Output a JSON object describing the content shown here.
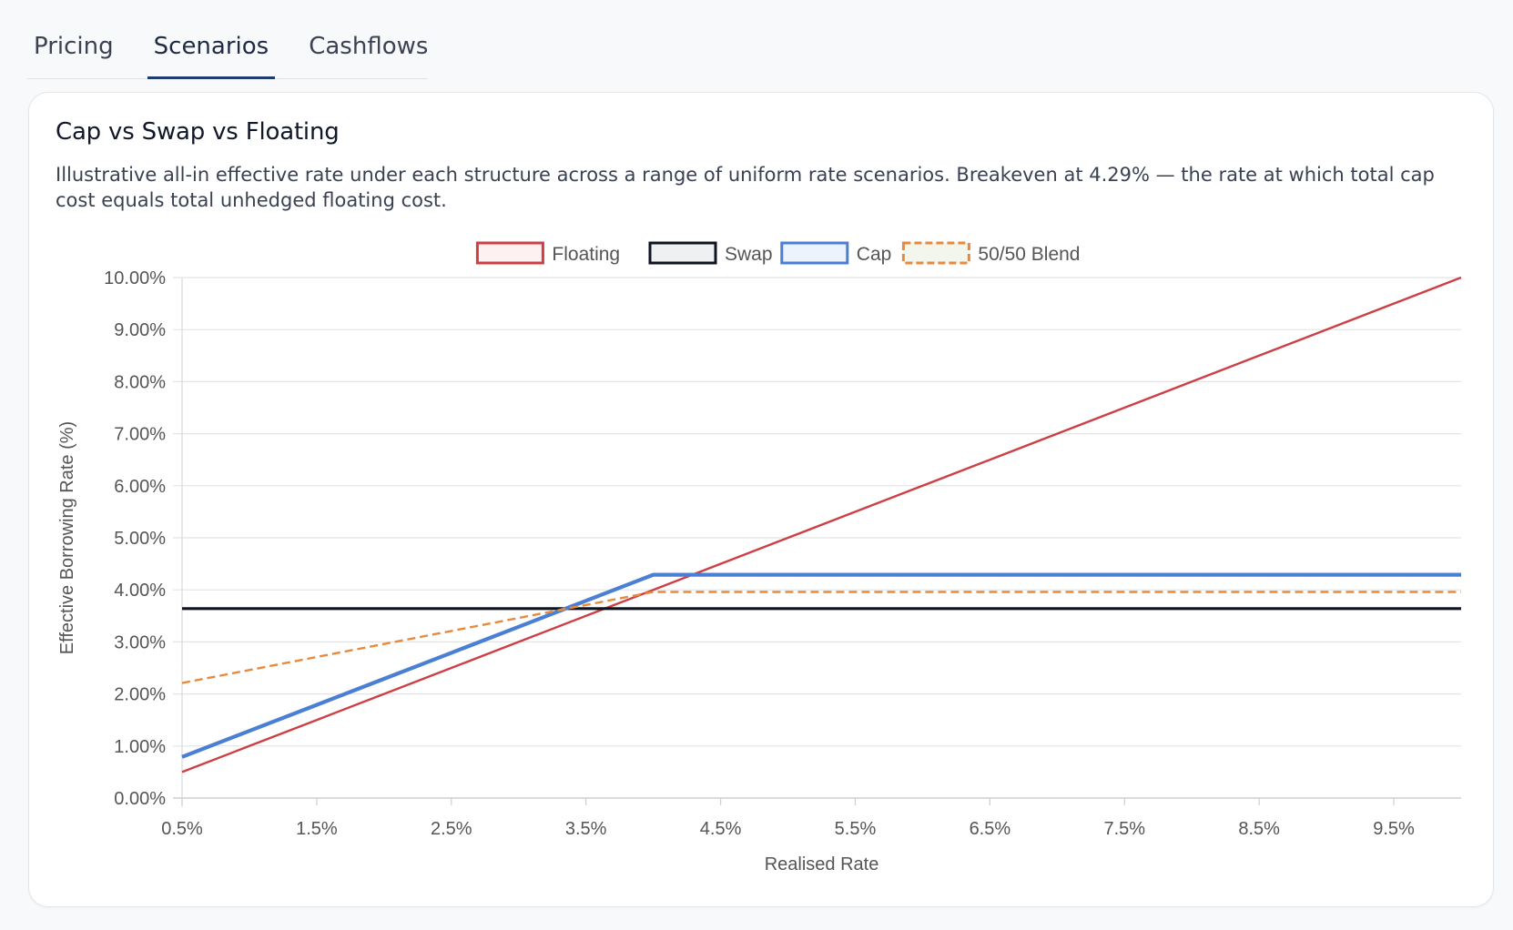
{
  "tabs": [
    {
      "label": "Pricing",
      "active": false
    },
    {
      "label": "Scenarios",
      "active": true
    },
    {
      "label": "Cashflows",
      "active": false
    }
  ],
  "card": {
    "title": "Cap vs Swap vs Floating",
    "description": "Illustrative all-in effective rate under each structure across a range of uniform rate scenarios. Breakeven at 4.29% — the rate at which total cap cost equals total unhedged floating cost."
  },
  "chart_data": {
    "type": "line",
    "title": "",
    "xlabel": "Realised Rate",
    "ylabel": "Effective Borrowing Rate (%)",
    "x": [
      0.5,
      1.0,
      1.5,
      2.0,
      2.5,
      3.0,
      3.5,
      4.0,
      4.5,
      5.0,
      5.5,
      6.0,
      6.5,
      7.0,
      7.5,
      8.0,
      8.5,
      9.0,
      9.5,
      10.0
    ],
    "x_tick_labels": [
      "0.5%",
      "1.5%",
      "2.5%",
      "3.5%",
      "4.5%",
      "5.5%",
      "6.5%",
      "7.5%",
      "8.5%",
      "9.5%"
    ],
    "xlim": [
      0.5,
      10.0
    ],
    "ylim": [
      0,
      10
    ],
    "y_ticks": [
      0,
      1,
      2,
      3,
      4,
      5,
      6,
      7,
      8,
      9,
      10
    ],
    "y_tick_labels": [
      "0.00%",
      "1.00%",
      "2.00%",
      "3.00%",
      "4.00%",
      "5.00%",
      "6.00%",
      "7.00%",
      "8.00%",
      "9.00%",
      "10.00%"
    ],
    "grid": true,
    "legend_position": "top-center",
    "series": [
      {
        "name": "Floating",
        "color": "#cc4045",
        "fill": "#fdf1f1",
        "dashed": false,
        "values": [
          0.5,
          1.0,
          1.5,
          2.0,
          2.5,
          3.0,
          3.5,
          4.0,
          4.5,
          5.0,
          5.5,
          6.0,
          6.5,
          7.0,
          7.5,
          8.0,
          8.5,
          9.0,
          9.5,
          10.0
        ]
      },
      {
        "name": "Swap",
        "color": "#0e1520",
        "fill": "#eef0f2",
        "dashed": false,
        "values": [
          3.64,
          3.64,
          3.64,
          3.64,
          3.64,
          3.64,
          3.64,
          3.64,
          3.64,
          3.64,
          3.64,
          3.64,
          3.64,
          3.64,
          3.64,
          3.64,
          3.64,
          3.64,
          3.64,
          3.64
        ]
      },
      {
        "name": "Cap",
        "color": "#4a7fd4",
        "fill": "#edf3fd",
        "dashed": false,
        "values": [
          0.79,
          1.29,
          1.79,
          2.29,
          2.79,
          3.29,
          3.79,
          4.29,
          4.29,
          4.29,
          4.29,
          4.29,
          4.29,
          4.29,
          4.29,
          4.29,
          4.29,
          4.29,
          4.29,
          4.29
        ]
      },
      {
        "name": "50/50 Blend",
        "color": "#e8893b",
        "fill": "#f3f6ec",
        "dashed": true,
        "values": [
          2.21,
          2.46,
          2.71,
          2.96,
          3.21,
          3.46,
          3.71,
          3.96,
          3.96,
          3.96,
          3.96,
          3.96,
          3.96,
          3.96,
          3.96,
          3.96,
          3.96,
          3.96,
          3.96,
          3.96
        ]
      }
    ]
  }
}
